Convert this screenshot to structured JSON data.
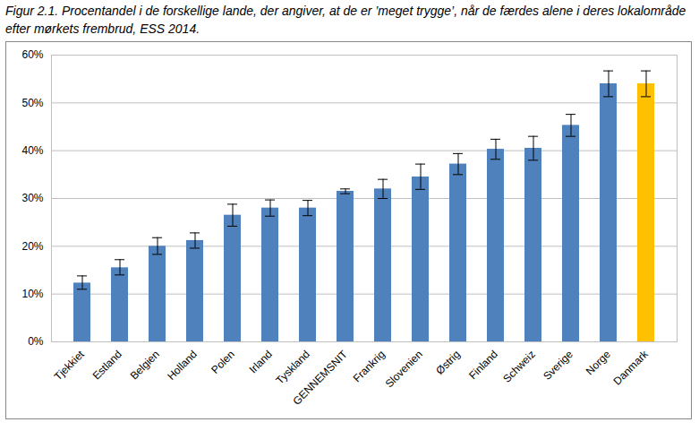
{
  "chart_data": {
    "type": "bar",
    "title": "Figur 2.1. Procentandel i de forskellige lande, der angiver, at de er ’meget trygge’, når de færdes alene i deres lokalområde efter mørkets frembrud, ESS 2014.",
    "categories": [
      "Tjekkiet",
      "Estland",
      "Belgien",
      "Holland",
      "Polen",
      "Irland",
      "Tyskland",
      "GENNEMSNIT",
      "Frankrig",
      "Slovenien",
      "Østrig",
      "Finland",
      "Schweiz",
      "Sverige",
      "Norge",
      "Danmark"
    ],
    "values": [
      12.3,
      15.5,
      20,
      21.2,
      26.5,
      28,
      28,
      31.5,
      32,
      34.5,
      37.2,
      40.3,
      40.5,
      45.3,
      54,
      54
    ],
    "error_low": [
      11,
      14,
      18.3,
      19.6,
      24.2,
      26.3,
      26.4,
      31,
      30,
      31.9,
      35,
      38.2,
      38,
      43,
      51.3,
      51.3
    ],
    "error_high": [
      13.8,
      17.2,
      21.8,
      22.8,
      28.8,
      29.7,
      29.6,
      32,
      34,
      37.2,
      39.4,
      42.4,
      43,
      47.6,
      56.7,
      56.7
    ],
    "colors": [
      "#4f81bd",
      "#4f81bd",
      "#4f81bd",
      "#4f81bd",
      "#4f81bd",
      "#4f81bd",
      "#4f81bd",
      "#4f81bd",
      "#4f81bd",
      "#4f81bd",
      "#4f81bd",
      "#4f81bd",
      "#4f81bd",
      "#4f81bd",
      "#4f81bd",
      "#ffc000"
    ],
    "ylim": [
      0,
      60
    ],
    "yticks": [
      {
        "value": 0,
        "label": "0%"
      },
      {
        "value": 10,
        "label": "10%"
      },
      {
        "value": 20,
        "label": "20%"
      },
      {
        "value": 30,
        "label": "30%"
      },
      {
        "value": 40,
        "label": "40%"
      },
      {
        "value": 50,
        "label": "50%"
      },
      {
        "value": 60,
        "label": "60%"
      }
    ],
    "grid": true
  }
}
